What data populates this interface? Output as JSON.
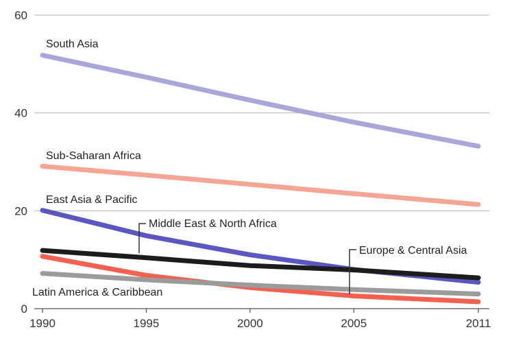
{
  "chart_data": {
    "type": "line",
    "title": "",
    "xlabel": "",
    "ylabel": "",
    "x": [
      1990,
      1995,
      2000,
      2005,
      2011
    ],
    "x_ticks": [
      "1990",
      "1995",
      "2000",
      "2005",
      "2011"
    ],
    "y_ticks": [
      "0",
      "20",
      "40",
      "60"
    ],
    "xlim": [
      1990,
      2011
    ],
    "ylim": [
      0,
      60
    ],
    "grid": "horizontal",
    "legend": "inline labels",
    "series": [
      {
        "name": "South Asia",
        "color": "#a7a7d9",
        "values": [
          51.8,
          47.3,
          42.6,
          38.1,
          33.2
        ]
      },
      {
        "name": "Sub-Saharan Africa",
        "color": "#f5a593",
        "values": [
          29.1,
          27.3,
          25.4,
          23.5,
          21.3
        ]
      },
      {
        "name": "East Asia & Pacific",
        "color": "#5a58c0",
        "values": [
          20.1,
          14.9,
          11.0,
          8.0,
          5.4
        ]
      },
      {
        "name": "Middle East & North Africa",
        "color": "#1c1c1c",
        "values": [
          11.9,
          10.4,
          8.8,
          7.9,
          6.3
        ]
      },
      {
        "name": "Europe & Central Asia",
        "color": "#f26150",
        "values": [
          10.7,
          6.8,
          4.3,
          2.6,
          1.4
        ]
      },
      {
        "name": "Latin America & Caribbean",
        "color": "#9b9b9b",
        "values": [
          7.2,
          5.9,
          4.8,
          3.9,
          3.0
        ]
      }
    ]
  }
}
